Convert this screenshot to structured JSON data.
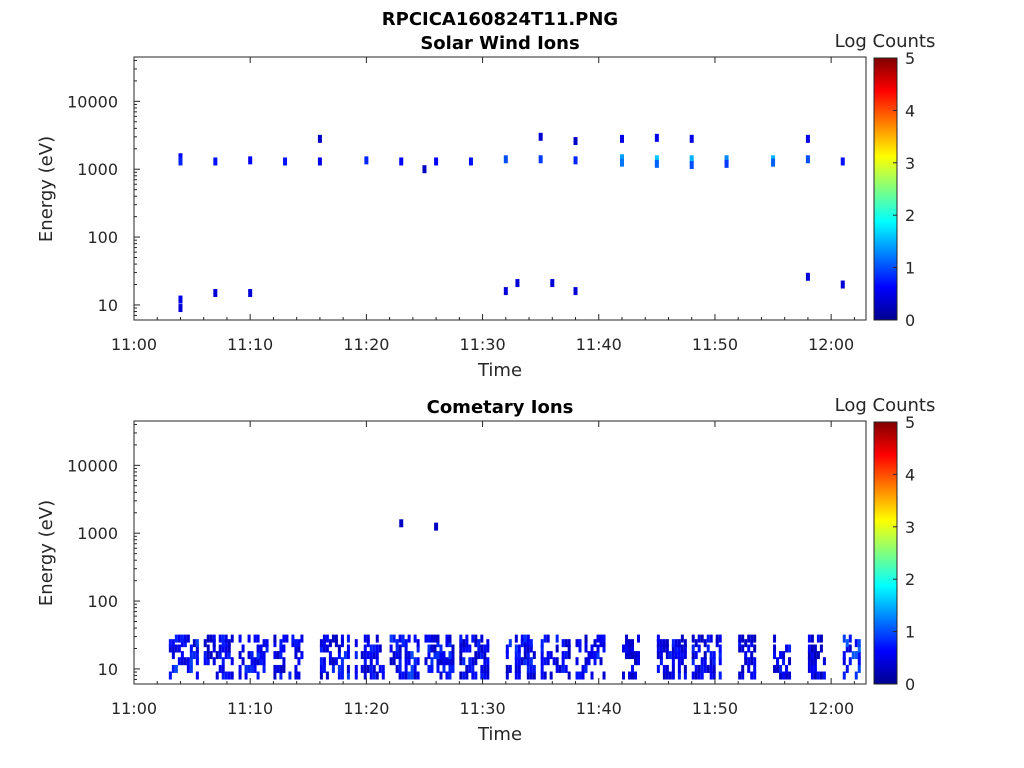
{
  "figure_title": "RPCICA160824T11.PNG",
  "colorscale": {
    "stops": [
      "#00008f",
      "#0000ff",
      "#0080ff",
      "#00ffff",
      "#80ff80",
      "#ffff00",
      "#ff8000",
      "#ff0000",
      "#800000"
    ]
  },
  "chart_data": [
    {
      "type": "heatmap",
      "title": "Solar Wind Ions",
      "xlabel": "Time",
      "ylabel": "Energy (eV)",
      "y_scale": "log",
      "xlim": [
        "11:00",
        "12:03"
      ],
      "ylim": [
        6,
        45000
      ],
      "x_ticks": [
        "11:00",
        "11:10",
        "11:20",
        "11:30",
        "11:40",
        "11:50",
        "12:00"
      ],
      "y_ticks": [
        {
          "value": 10,
          "label": "10"
        },
        {
          "value": 100,
          "label": "100"
        },
        {
          "value": 1000,
          "label": "1000"
        },
        {
          "value": 10000,
          "label": "10000"
        }
      ],
      "colorbar": {
        "label": "Log Counts",
        "range": [
          0,
          5
        ],
        "ticks": [
          "0",
          "1",
          "2",
          "3",
          "4",
          "5"
        ]
      },
      "points": [
        {
          "t": "11:04",
          "e": 1500,
          "v": 0.6
        },
        {
          "t": "11:04",
          "e": 1300,
          "v": 0.8
        },
        {
          "t": "11:04",
          "e": 12,
          "v": 0.5
        },
        {
          "t": "11:04",
          "e": 9,
          "v": 0.4
        },
        {
          "t": "11:07",
          "e": 1300,
          "v": 0.7
        },
        {
          "t": "11:07",
          "e": 15,
          "v": 0.4
        },
        {
          "t": "11:10",
          "e": 1350,
          "v": 0.6
        },
        {
          "t": "11:10",
          "e": 15,
          "v": 0.4
        },
        {
          "t": "11:13",
          "e": 1300,
          "v": 0.7
        },
        {
          "t": "11:16",
          "e": 2800,
          "v": 0.3
        },
        {
          "t": "11:16",
          "e": 1300,
          "v": 0.5
        },
        {
          "t": "11:20",
          "e": 1350,
          "v": 0.8
        },
        {
          "t": "11:23",
          "e": 1300,
          "v": 0.6
        },
        {
          "t": "11:25",
          "e": 1000,
          "v": 0.3
        },
        {
          "t": "11:26",
          "e": 1300,
          "v": 0.6
        },
        {
          "t": "11:29",
          "e": 1300,
          "v": 0.7
        },
        {
          "t": "11:32",
          "e": 1400,
          "v": 1.0
        },
        {
          "t": "11:32",
          "e": 16,
          "v": 0.4
        },
        {
          "t": "11:33",
          "e": 21,
          "v": 0.4
        },
        {
          "t": "11:35",
          "e": 3000,
          "v": 0.4
        },
        {
          "t": "11:35",
          "e": 1400,
          "v": 0.9
        },
        {
          "t": "11:36",
          "e": 21,
          "v": 0.4
        },
        {
          "t": "11:38",
          "e": 2600,
          "v": 0.3
        },
        {
          "t": "11:38",
          "e": 1350,
          "v": 0.8
        },
        {
          "t": "11:38",
          "e": 16,
          "v": 0.4
        },
        {
          "t": "11:42",
          "e": 2800,
          "v": 0.5
        },
        {
          "t": "11:42",
          "e": 1450,
          "v": 1.4
        },
        {
          "t": "11:42",
          "e": 1250,
          "v": 1.2
        },
        {
          "t": "11:45",
          "e": 2900,
          "v": 0.5
        },
        {
          "t": "11:45",
          "e": 1400,
          "v": 1.6
        },
        {
          "t": "11:45",
          "e": 1200,
          "v": 1.1
        },
        {
          "t": "11:48",
          "e": 2800,
          "v": 0.5
        },
        {
          "t": "11:48",
          "e": 1400,
          "v": 1.5
        },
        {
          "t": "11:48",
          "e": 1150,
          "v": 1.0
        },
        {
          "t": "11:51",
          "e": 1400,
          "v": 1.3
        },
        {
          "t": "11:51",
          "e": 1200,
          "v": 0.9
        },
        {
          "t": "11:55",
          "e": 1400,
          "v": 1.5
        },
        {
          "t": "11:55",
          "e": 1250,
          "v": 1.1
        },
        {
          "t": "11:58",
          "e": 2800,
          "v": 0.5
        },
        {
          "t": "11:58",
          "e": 1400,
          "v": 1.0
        },
        {
          "t": "11:58",
          "e": 26,
          "v": 0.4
        },
        {
          "t": "12:01",
          "e": 1300,
          "v": 0.7
        },
        {
          "t": "12:01",
          "e": 20,
          "v": 0.4
        }
      ]
    },
    {
      "type": "heatmap",
      "title": "Cometary Ions",
      "xlabel": "Time",
      "ylabel": "Energy (eV)",
      "y_scale": "log",
      "xlim": [
        "11:00",
        "12:03"
      ],
      "ylim": [
        6,
        45000
      ],
      "x_ticks": [
        "11:00",
        "11:10",
        "11:20",
        "11:30",
        "11:40",
        "11:50",
        "12:00"
      ],
      "y_ticks": [
        {
          "value": 10,
          "label": "10"
        },
        {
          "value": 100,
          "label": "100"
        },
        {
          "value": 1000,
          "label": "1000"
        },
        {
          "value": 10000,
          "label": "10000"
        }
      ],
      "colorbar": {
        "label": "Log Counts",
        "range": [
          0,
          5
        ],
        "ticks": [
          "0",
          "1",
          "2",
          "3",
          "4",
          "5"
        ]
      },
      "points": [
        {
          "t": "11:23",
          "e": 1400,
          "v": 0.3
        },
        {
          "t": "11:26",
          "e": 1250,
          "v": 0.3
        }
      ],
      "bursts": [
        {
          "start": "11:03",
          "end": "11:05",
          "peak": 1.0
        },
        {
          "start": "11:06",
          "end": "11:08",
          "peak": 0.8
        },
        {
          "start": "11:09",
          "end": "11:11",
          "peak": 0.9
        },
        {
          "start": "11:12",
          "end": "11:14",
          "peak": 0.8
        },
        {
          "start": "11:16",
          "end": "11:18",
          "peak": 0.9
        },
        {
          "start": "11:19",
          "end": "11:21",
          "peak": 0.8
        },
        {
          "start": "11:22",
          "end": "11:24",
          "peak": 1.0
        },
        {
          "start": "11:25",
          "end": "11:27",
          "peak": 0.9
        },
        {
          "start": "11:28",
          "end": "11:30",
          "peak": 0.8
        },
        {
          "start": "11:32",
          "end": "11:34",
          "peak": 0.9
        },
        {
          "start": "11:35",
          "end": "11:37",
          "peak": 0.8
        },
        {
          "start": "11:38",
          "end": "11:40",
          "peak": 0.9
        },
        {
          "start": "11:42",
          "end": "11:43",
          "peak": 0.7
        },
        {
          "start": "11:45",
          "end": "11:47",
          "peak": 0.8
        },
        {
          "start": "11:48",
          "end": "11:50",
          "peak": 0.8
        },
        {
          "start": "11:52",
          "end": "11:53",
          "peak": 0.7
        },
        {
          "start": "11:55",
          "end": "11:56",
          "peak": 0.8
        },
        {
          "start": "11:58",
          "end": "11:59",
          "peak": 0.7
        },
        {
          "start": "12:01",
          "end": "12:02",
          "peak": 1.2
        }
      ]
    }
  ]
}
